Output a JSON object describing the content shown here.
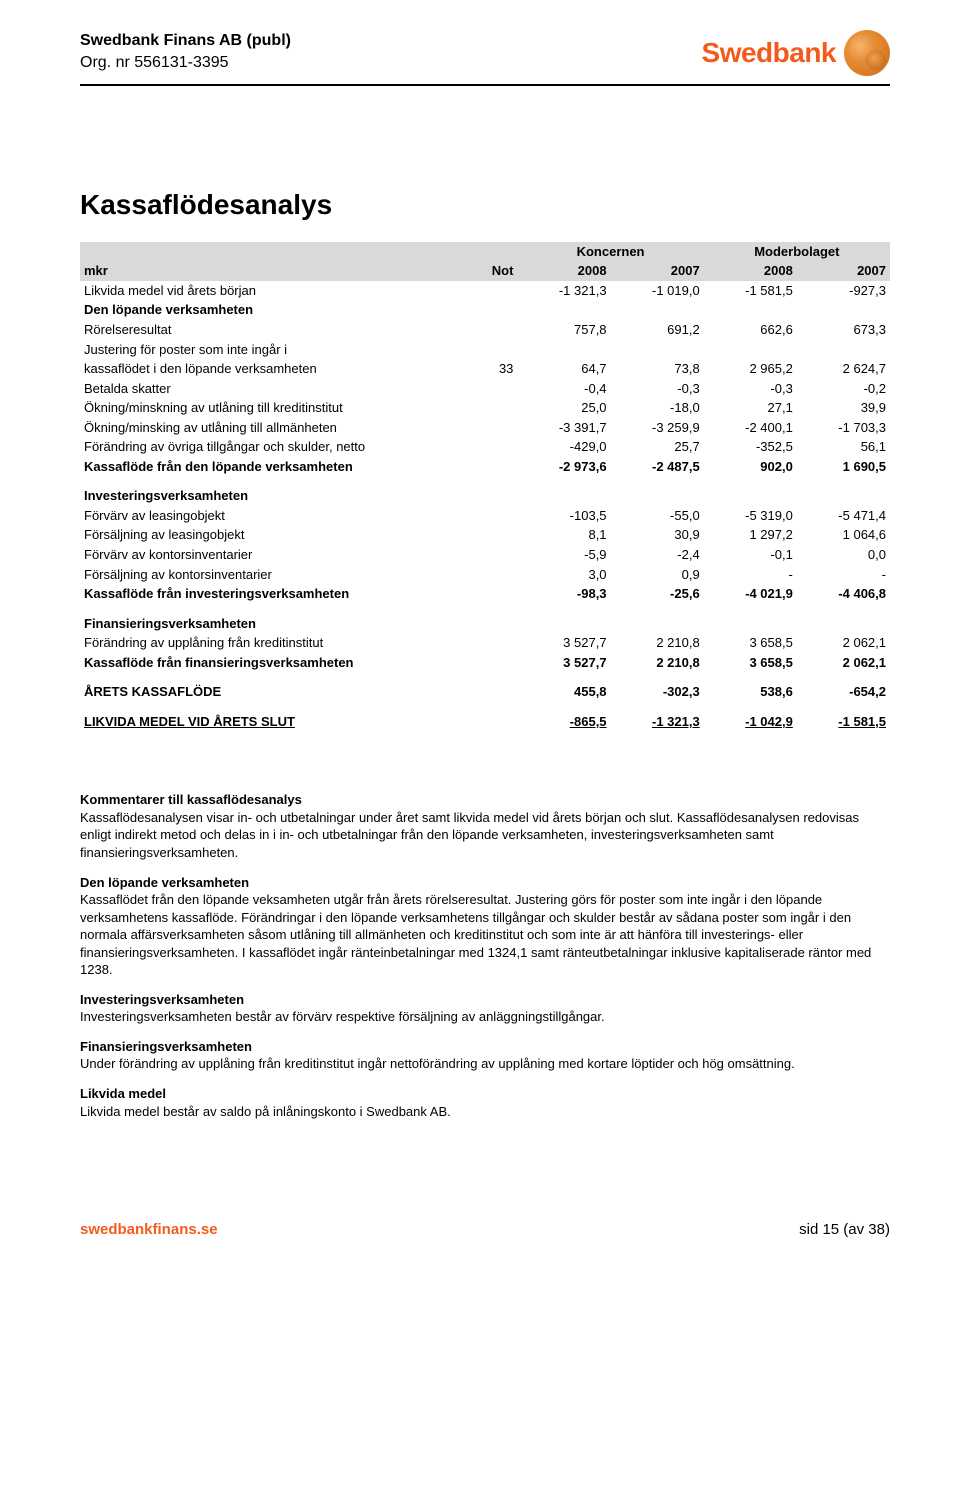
{
  "header": {
    "company": "Swedbank Finans AB (publ)",
    "org": "Org. nr 556131-3395",
    "logo_text": "Swedbank"
  },
  "title": "Kassaflödesanalys",
  "table": {
    "unit_label": "mkr",
    "not_label": "Not",
    "group_headers": [
      "Koncernen",
      "Moderbolaget"
    ],
    "years": [
      "2008",
      "2007",
      "2008",
      "2007"
    ],
    "sections": [
      {
        "rows": [
          {
            "label": "Likvida medel vid årets början",
            "not": "",
            "vals": [
              "-1 321,3",
              "-1 019,0",
              "-1 581,5",
              "-927,3"
            ]
          },
          {
            "label": "Den löpande verksamheten",
            "not": "",
            "vals": [
              "",
              "",
              "",
              ""
            ],
            "bold": true
          },
          {
            "label": "Rörelseresultat",
            "not": "",
            "vals": [
              "757,8",
              "691,2",
              "662,6",
              "673,3"
            ]
          },
          {
            "label": "Justering för poster som inte ingår i",
            "not": "",
            "vals": [
              "",
              "",
              "",
              ""
            ]
          },
          {
            "label": "kassaflödet i den löpande verksamheten",
            "not": "33",
            "vals": [
              "64,7",
              "73,8",
              "2 965,2",
              "2 624,7"
            ]
          },
          {
            "label": "Betalda skatter",
            "not": "",
            "vals": [
              "-0,4",
              "-0,3",
              "-0,3",
              "-0,2"
            ]
          },
          {
            "label": "Ökning/minskning av utlåning till kreditinstitut",
            "not": "",
            "vals": [
              "25,0",
              "-18,0",
              "27,1",
              "39,9"
            ]
          },
          {
            "label": "Ökning/minsking av utlåning till allmänheten",
            "not": "",
            "vals": [
              "-3 391,7",
              "-3 259,9",
              "-2 400,1",
              "-1 703,3"
            ]
          },
          {
            "label": "Förändring av övriga tillgångar och skulder, netto",
            "not": "",
            "vals": [
              "-429,0",
              "25,7",
              "-352,5",
              "56,1"
            ]
          },
          {
            "label": "Kassaflöde från den löpande verksamheten",
            "not": "",
            "vals": [
              "-2 973,6",
              "-2 487,5",
              "902,0",
              "1 690,5"
            ],
            "bold": true
          }
        ]
      },
      {
        "rows": [
          {
            "label": "Investeringsverksamheten",
            "not": "",
            "vals": [
              "",
              "",
              "",
              ""
            ],
            "bold": true
          },
          {
            "label": "Förvärv av leasingobjekt",
            "not": "",
            "vals": [
              "-103,5",
              "-55,0",
              "-5 319,0",
              "-5 471,4"
            ]
          },
          {
            "label": "Försäljning av leasingobjekt",
            "not": "",
            "vals": [
              "8,1",
              "30,9",
              "1 297,2",
              "1 064,6"
            ]
          },
          {
            "label": "Förvärv av kontorsinventarier",
            "not": "",
            "vals": [
              "-5,9",
              "-2,4",
              "-0,1",
              "0,0"
            ]
          },
          {
            "label": "Försäljning av kontorsinventarier",
            "not": "",
            "vals": [
              "3,0",
              "0,9",
              "-",
              "-"
            ]
          },
          {
            "label": "Kassaflöde från investeringsverksamheten",
            "not": "",
            "vals": [
              "-98,3",
              "-25,6",
              "-4 021,9",
              "-4 406,8"
            ],
            "bold": true
          }
        ]
      },
      {
        "rows": [
          {
            "label": "Finansieringsverksamheten",
            "not": "",
            "vals": [
              "",
              "",
              "",
              ""
            ],
            "bold": true
          },
          {
            "label": "Förändring av upplåning från kreditinstitut",
            "not": "",
            "vals": [
              "3 527,7",
              "2 210,8",
              "3 658,5",
              "2 062,1"
            ]
          },
          {
            "label": "Kassaflöde från finansieringsverksamheten",
            "not": "",
            "vals": [
              "3 527,7",
              "2 210,8",
              "3 658,5",
              "2 062,1"
            ],
            "bold": true
          }
        ]
      },
      {
        "rows": [
          {
            "label": "ÅRETS KASSAFLÖDE",
            "not": "",
            "vals": [
              "455,8",
              "-302,3",
              "538,6",
              "-654,2"
            ],
            "bold": true
          }
        ]
      },
      {
        "rows": [
          {
            "label": "LIKVIDA MEDEL VID ÅRETS SLUT",
            "not": "",
            "vals": [
              "-865,5",
              "-1 321,3",
              "-1 042,9",
              "-1 581,5"
            ],
            "bold": true,
            "underline": true
          }
        ]
      }
    ],
    "header_bg": "#d9d9d9"
  },
  "comments": {
    "intro_head": "Kommentarer till kassaflödesanalys",
    "intro_body": "Kassaflödesanalysen visar in- och utbetalningar under året samt likvida medel vid årets början och slut. Kassaflödesanalysen redovisas enligt indirekt metod och delas in i in- och utbetalningar från den löpande verksamheten, investeringsverksamheten samt finansieringsverksamheten.",
    "s1_head": "Den löpande verksamheten",
    "s1_body": "Kassaflödet från den löpande veksamheten utgår från årets rörelseresultat. Justering görs för poster som inte ingår i den löpande verksamhetens kassaflöde. Förändringar i den löpande verksamhetens tillgångar och skulder består av sådana poster som ingår i den normala affärsverksamheten såsom utlåning till allmänheten och kreditinstitut och som inte är att hänföra till investerings- eller finansieringsverksamheten. I kassaflödet ingår ränteinbetalningar med 1324,1 samt ränteutbetalningar inklusive kapitaliserade räntor med 1238.",
    "s2_head": "Investeringsverksamheten",
    "s2_body": "Investeringsverksamheten består av förvärv respektive försäljning av anläggningstillgångar.",
    "s3_head": "Finansieringsverksamheten",
    "s3_body": "Under förändring av upplåning från kreditinstitut ingår nettoförändring av upplåning med kortare löptider och hög omsättning.",
    "s4_head": "Likvida medel",
    "s4_body": "Likvida medel består av saldo på inlåningskonto i Swedbank AB."
  },
  "footer": {
    "left": "swedbankfinans.se",
    "right": "sid 15 (av 38)"
  }
}
